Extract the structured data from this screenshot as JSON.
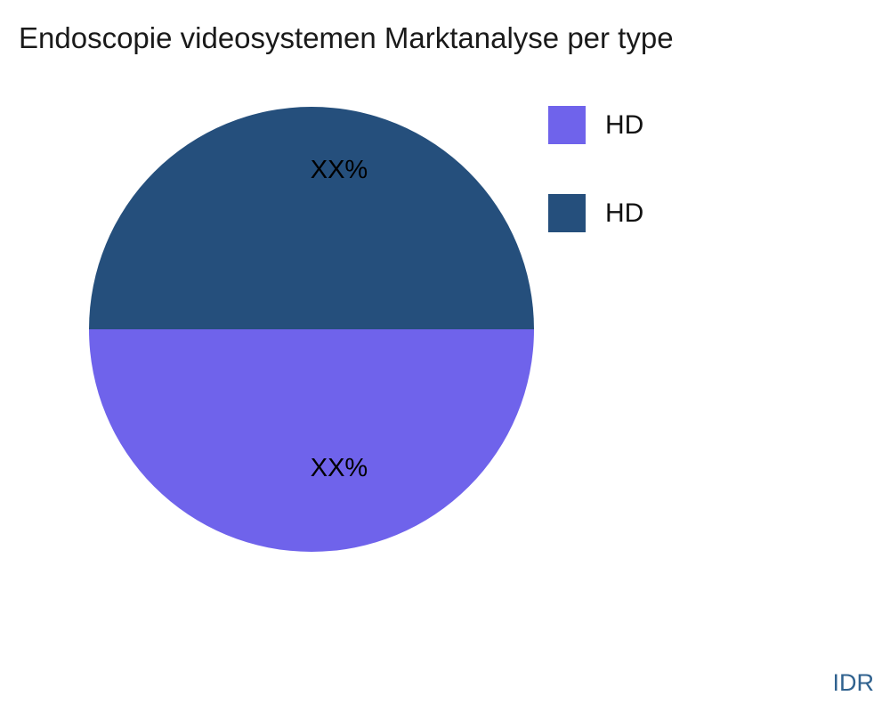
{
  "title": "Endoscopie videosystemen Marktanalyse per type",
  "watermark": "IDR",
  "colors": {
    "slice_purple": "#6F63EB",
    "slice_navy": "#254F7C",
    "title_text": "#1a1a1a",
    "label_text": "#000000",
    "watermark_text": "#30628f",
    "background": "#ffffff"
  },
  "chart_data": {
    "type": "pie",
    "title": "Endoscopie videosystemen Marktanalyse per type",
    "slices": [
      {
        "label": "HD",
        "value": 50,
        "display_value": "XX%",
        "color": "#6F63EB"
      },
      {
        "label": "HD",
        "value": 50,
        "display_value": "XX%",
        "color": "#254F7C"
      }
    ],
    "start_angle_deg": 0,
    "direction": "clockwise-from-east-through-bottom",
    "legend_position": "right",
    "grid": false,
    "axes": false
  }
}
